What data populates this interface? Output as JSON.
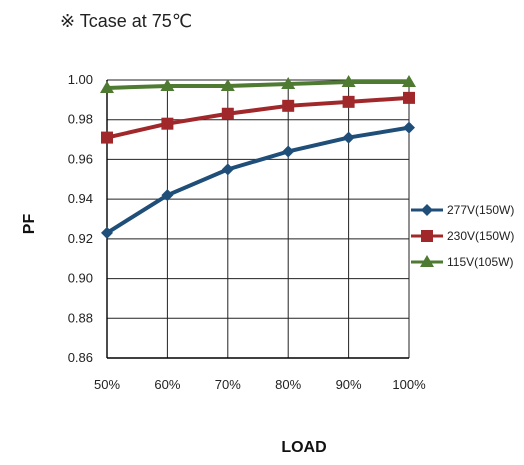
{
  "note": "※ Tcase at 75℃",
  "chart_data": {
    "type": "line",
    "title": "",
    "xlabel": "LOAD",
    "ylabel": "PF",
    "categories": [
      "50%",
      "60%",
      "70%",
      "80%",
      "90%",
      "100%"
    ],
    "ylim": [
      0.86,
      1.0
    ],
    "yticks": [
      "0.86",
      "0.88",
      "0.90",
      "0.92",
      "0.94",
      "0.96",
      "0.98",
      "1.00"
    ],
    "grid": true,
    "legend": "right",
    "series": [
      {
        "name": "277V(150W)",
        "values": [
          0.923,
          0.942,
          0.955,
          0.964,
          0.971,
          0.976
        ],
        "color": "#1F4E79",
        "marker": "diamond"
      },
      {
        "name": "230V(150W)",
        "values": [
          0.971,
          0.978,
          0.983,
          0.987,
          0.989,
          0.991
        ],
        "color": "#A0282B",
        "marker": "square"
      },
      {
        "name": "115V(105W)",
        "values": [
          0.996,
          0.997,
          0.997,
          0.998,
          0.999,
          0.999
        ],
        "color": "#4E7A32",
        "marker": "triangle"
      }
    ]
  }
}
